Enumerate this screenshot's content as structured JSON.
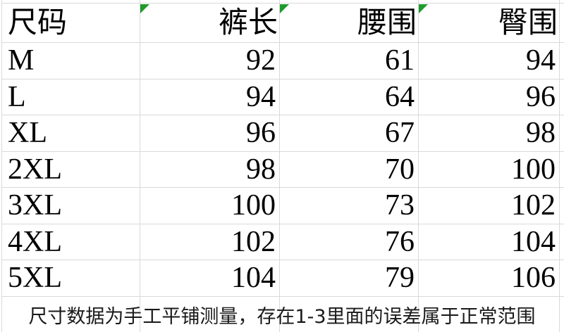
{
  "colors": {
    "background": "#ffffff",
    "gridline": "#d9d9d9",
    "table_text": "#000000",
    "note_text": "#1a1a1a",
    "comment_marker_green": "#1e9b2d"
  },
  "size_chart": {
    "columns": [
      {
        "label": "尺码"
      },
      {
        "label": "裤长"
      },
      {
        "label": "腰围"
      },
      {
        "label": "臀围"
      }
    ],
    "rows": [
      {
        "size": "M",
        "pants_length": "92",
        "waist": "61",
        "hip": "94"
      },
      {
        "size": "L",
        "pants_length": "94",
        "waist": "64",
        "hip": "96"
      },
      {
        "size": "XL",
        "pants_length": "96",
        "waist": "67",
        "hip": "98"
      },
      {
        "size": "2XL",
        "pants_length": "98",
        "waist": "70",
        "hip": "100"
      },
      {
        "size": "3XL",
        "pants_length": "100",
        "waist": "73",
        "hip": "102"
      },
      {
        "size": "4XL",
        "pants_length": "102",
        "waist": "76",
        "hip": "104"
      },
      {
        "size": "5XL",
        "pants_length": "104",
        "waist": "79",
        "hip": "106"
      }
    ],
    "note": "尺寸数据为手工平铺测量，存在1-3里面的误差属于正常范围"
  }
}
